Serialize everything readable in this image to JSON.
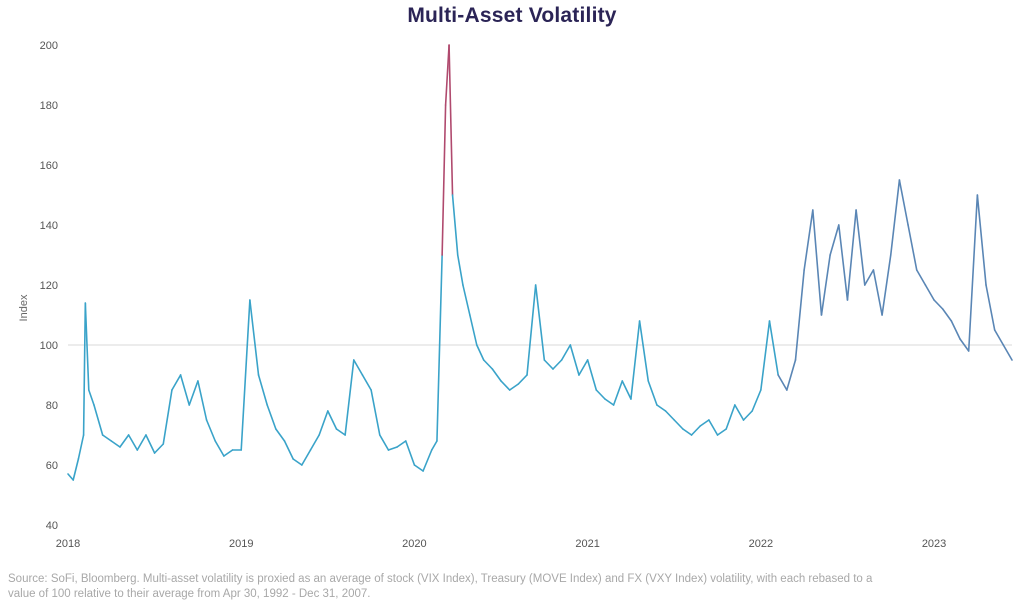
{
  "title": "Multi-Asset Volatility",
  "footnote": "Source: SoFi, Bloomberg. Multi-asset volatility is proxied as an average of stock (VIX Index), Treasury (MOVE Index) and FX (VXY Index) volatility, with each rebased to a value of 100 relative to their average from Apr 30, 1992 - Dec 31, 2007.",
  "chart_data": {
    "type": "line",
    "title": "Multi-Asset Volatility",
    "xlabel": "",
    "ylabel": "Index",
    "xlim": [
      2018.0,
      2023.45
    ],
    "ylim": [
      40,
      200
    ],
    "yticks": [
      40,
      60,
      80,
      100,
      120,
      140,
      160,
      180,
      200
    ],
    "xticks": [
      "2018",
      "2019",
      "2020",
      "2021",
      "2022",
      "2023"
    ],
    "reference_line": 100,
    "grid": false,
    "colors": {
      "line": "#3aa3c9",
      "line_2022": "#5a86b5",
      "spike": "#b04a6e",
      "reference": "#d9d9d9"
    },
    "x": [
      2018.0,
      2018.03,
      2018.06,
      2018.09,
      2018.1,
      2018.12,
      2018.15,
      2018.2,
      2018.25,
      2018.3,
      2018.35,
      2018.4,
      2018.45,
      2018.5,
      2018.55,
      2018.6,
      2018.65,
      2018.7,
      2018.75,
      2018.8,
      2018.85,
      2018.9,
      2018.95,
      2019.0,
      2019.05,
      2019.1,
      2019.15,
      2019.2,
      2019.25,
      2019.3,
      2019.35,
      2019.4,
      2019.45,
      2019.5,
      2019.55,
      2019.6,
      2019.65,
      2019.7,
      2019.75,
      2019.8,
      2019.85,
      2019.9,
      2019.95,
      2020.0,
      2020.05,
      2020.1,
      2020.13,
      2020.16,
      2020.18,
      2020.2,
      2020.22,
      2020.25,
      2020.28,
      2020.32,
      2020.36,
      2020.4,
      2020.45,
      2020.5,
      2020.55,
      2020.6,
      2020.65,
      2020.7,
      2020.75,
      2020.8,
      2020.85,
      2020.9,
      2020.95,
      2021.0,
      2021.05,
      2021.1,
      2021.15,
      2021.2,
      2021.25,
      2021.3,
      2021.35,
      2021.4,
      2021.45,
      2021.5,
      2021.55,
      2021.6,
      2021.65,
      2021.7,
      2021.75,
      2021.8,
      2021.85,
      2021.9,
      2021.95,
      2022.0,
      2022.05,
      2022.1,
      2022.15,
      2022.2,
      2022.25,
      2022.3,
      2022.35,
      2022.4,
      2022.45,
      2022.5,
      2022.55,
      2022.6,
      2022.65,
      2022.7,
      2022.75,
      2022.8,
      2022.85,
      2022.9,
      2022.95,
      2023.0,
      2023.05,
      2023.1,
      2023.15,
      2023.2,
      2023.25,
      2023.3,
      2023.35,
      2023.4,
      2023.45
    ],
    "y": [
      57,
      55,
      62,
      70,
      114,
      85,
      80,
      70,
      68,
      66,
      70,
      65,
      70,
      64,
      67,
      85,
      90,
      80,
      88,
      75,
      68,
      63,
      65,
      65,
      115,
      90,
      80,
      72,
      68,
      62,
      60,
      65,
      70,
      78,
      72,
      70,
      95,
      90,
      85,
      70,
      65,
      66,
      68,
      60,
      58,
      65,
      68,
      130,
      180,
      200,
      150,
      130,
      120,
      110,
      100,
      95,
      92,
      88,
      85,
      87,
      90,
      120,
      95,
      92,
      95,
      100,
      90,
      95,
      85,
      82,
      80,
      88,
      82,
      108,
      88,
      80,
      78,
      75,
      72,
      70,
      73,
      75,
      70,
      72,
      80,
      75,
      78,
      85,
      108,
      90,
      85,
      95,
      125,
      145,
      110,
      130,
      140,
      115,
      145,
      120,
      125,
      110,
      130,
      155,
      140,
      125,
      120,
      115,
      112,
      108,
      102,
      98,
      150,
      120,
      105,
      100,
      95
    ]
  }
}
